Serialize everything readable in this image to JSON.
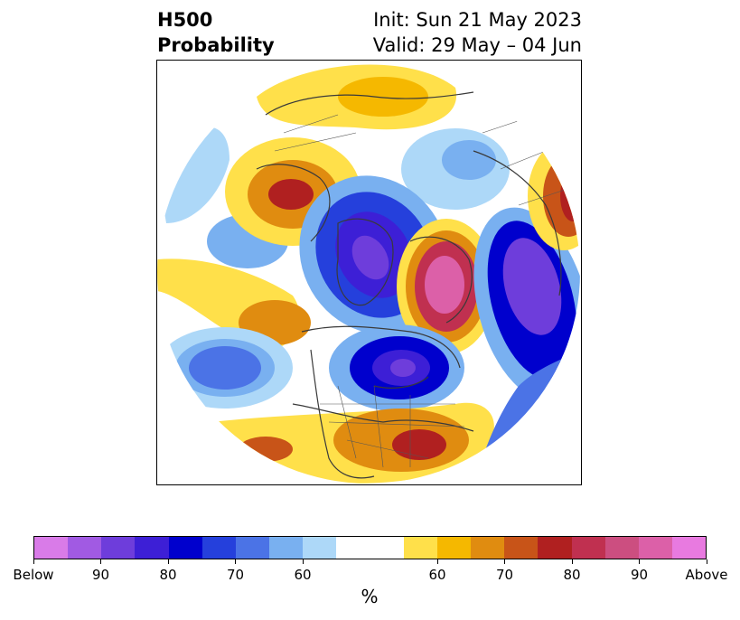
{
  "title": {
    "left_line1": "H500",
    "left_line2": "Probability",
    "right_line1": "Init: Sun 21 May 2023",
    "right_line2": "Valid: 29 May – 04 Jun"
  },
  "colorbar": {
    "colors": [
      "#d97be8",
      "#a15ae3",
      "#6e3ddb",
      "#3d1fd6",
      "#0000cd",
      "#2540dc",
      "#4b73e6",
      "#79b0f0",
      "#add8f8",
      "#ffffff",
      "#ffffff",
      "#ffe04a",
      "#f5b800",
      "#e08c10",
      "#c85418",
      "#b02020",
      "#c03050",
      "#cc4e80",
      "#dc60a8",
      "#e87ae0"
    ],
    "labels": [
      "Below",
      "90",
      "80",
      "70",
      "60",
      "60",
      "70",
      "80",
      "90",
      "Above"
    ],
    "units": "%"
  },
  "map": {
    "projection": "north polar stereographic",
    "anomalies": [
      {
        "name": "blue-anomaly-greenland",
        "kind": "below",
        "strength": "90"
      },
      {
        "name": "blue-anomaly-hudson-bay",
        "kind": "below",
        "strength": "90"
      },
      {
        "name": "blue-anomaly-siberia-pacific",
        "kind": "below",
        "strength": "90"
      },
      {
        "name": "red-anomaly-scandinavia-arctic",
        "kind": "above",
        "strength": "Above"
      },
      {
        "name": "red-anomaly-central-asia",
        "kind": "above",
        "strength": "80"
      },
      {
        "name": "red-anomaly-southeast-us",
        "kind": "above",
        "strength": "80"
      },
      {
        "name": "red-anomaly-alaska",
        "kind": "above",
        "strength": "80"
      }
    ]
  }
}
